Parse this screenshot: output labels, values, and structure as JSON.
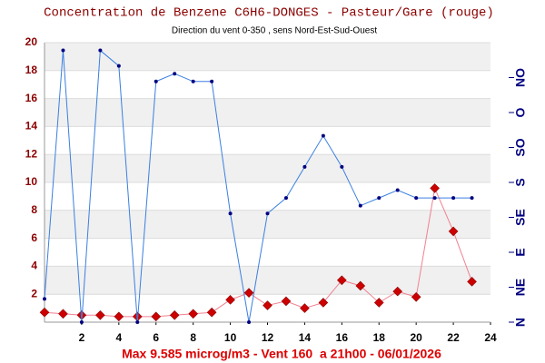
{
  "chart_data": {
    "type": "line",
    "title": "Concentration de Benzene C6H6-DONGES - Pasteur/Gare (rouge)",
    "subtitle": "Direction du vent 0-350 , sens Nord-Est-Sud-Ouest",
    "footer": "Max 9.585 microg/m3 - Vent 160  a 21h00 - 06/01/2026",
    "x": [
      0,
      1,
      2,
      3,
      4,
      5,
      6,
      7,
      8,
      9,
      10,
      11,
      12,
      13,
      14,
      15,
      16,
      17,
      18,
      19,
      20,
      21,
      22,
      23
    ],
    "series": [
      {
        "name": "Benzene",
        "color": "#cc0000",
        "axis": "y",
        "values": [
          0.7,
          0.6,
          0.5,
          0.5,
          0.4,
          0.4,
          0.4,
          0.5,
          0.6,
          0.7,
          1.6,
          2.1,
          1.2,
          1.5,
          1.0,
          1.4,
          3.0,
          2.6,
          1.4,
          2.2,
          1.8,
          9.585,
          6.5,
          2.9
        ]
      },
      {
        "name": "Vent",
        "color": "#3a7fe0",
        "axis": "y2",
        "values": [
          30,
          350,
          0,
          350,
          330,
          0,
          310,
          320,
          310,
          310,
          140,
          0,
          140,
          160,
          200,
          240,
          200,
          150,
          160,
          170,
          160,
          160,
          160,
          160
        ]
      }
    ],
    "xlim": [
      0,
      24
    ],
    "xticks": [
      2,
      4,
      6,
      8,
      10,
      12,
      14,
      16,
      18,
      20,
      22,
      24
    ],
    "ylim": [
      0,
      20
    ],
    "yticks": [
      2,
      4,
      6,
      8,
      10,
      12,
      14,
      16,
      18,
      20
    ],
    "y2lim": [
      0,
      360
    ],
    "y2ticks": [
      {
        "value": 0,
        "label": "N"
      },
      {
        "value": 45,
        "label": "NE"
      },
      {
        "value": 90,
        "label": "E"
      },
      {
        "value": 135,
        "label": "SE"
      },
      {
        "value": 180,
        "label": "S"
      },
      {
        "value": 225,
        "label": "SO"
      },
      {
        "value": 270,
        "label": "O"
      },
      {
        "value": 315,
        "label": "NO"
      }
    ],
    "grid": true
  }
}
